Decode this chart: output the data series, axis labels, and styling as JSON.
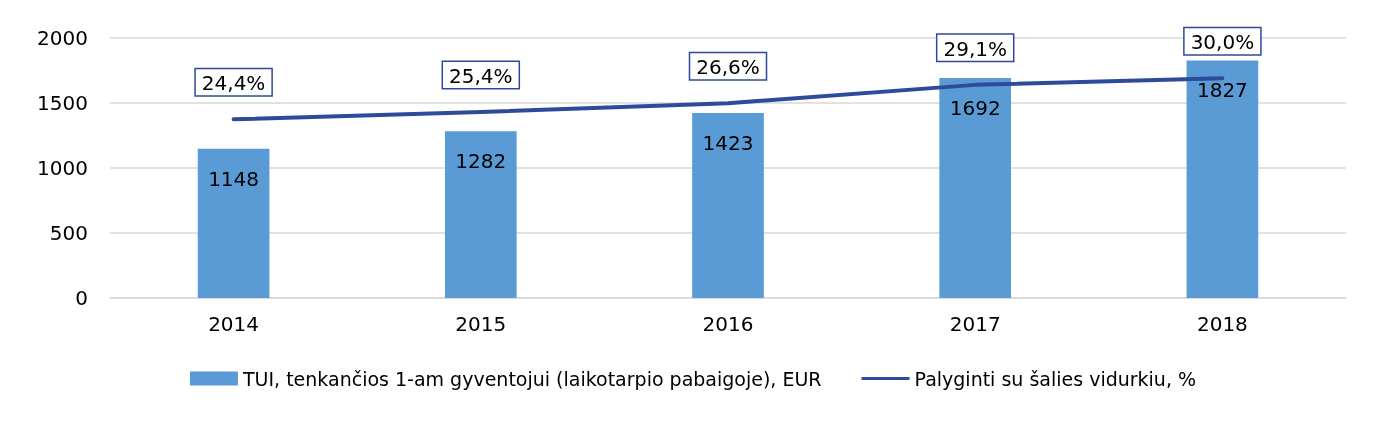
{
  "chart_data": {
    "type": "bar",
    "categories": [
      "2014",
      "2015",
      "2016",
      "2017",
      "2018"
    ],
    "series": [
      {
        "name": "TUI, tenkančios 1-am gyventojui (laikotarpio pabaigoje), EUR",
        "color": "#5b9bd5",
        "values": [
          1148,
          1282,
          1423,
          1692,
          1827
        ],
        "value_labels": [
          "1148",
          "1282",
          "1423",
          "1692",
          "1827"
        ]
      },
      {
        "name": "Palyginti su šalies vidurkiu, %",
        "type": "line",
        "axis": "y2",
        "color": "#2e4a9b",
        "values": [
          24.4,
          25.4,
          26.6,
          29.1,
          30.0
        ],
        "value_labels": [
          "24,4%",
          "25,4%",
          "26,6%",
          "29,1%",
          "30,0%"
        ]
      }
    ],
    "ylim": [
      0,
      2000
    ],
    "yticks": [
      0,
      500,
      1000,
      1500,
      2000
    ],
    "y2lim": [
      0,
      35.5
    ],
    "grid": "y",
    "legend": "bottom",
    "marker": "none",
    "line_style": "solid"
  }
}
